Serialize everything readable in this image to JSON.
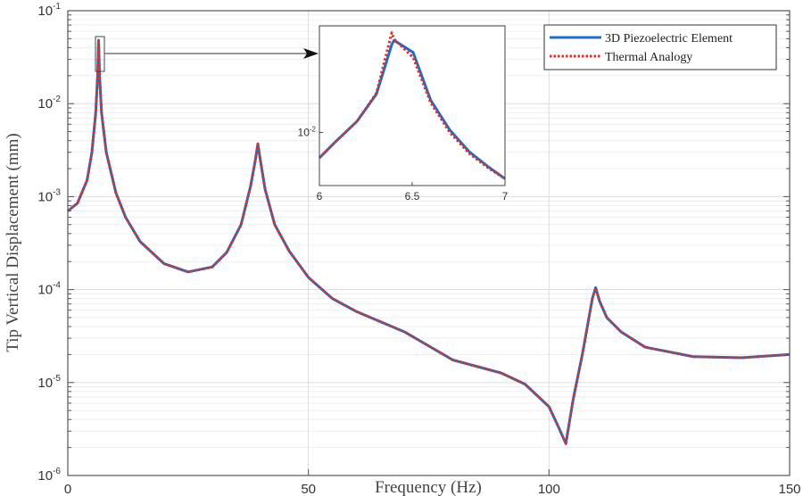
{
  "chart_data": {
    "type": "line",
    "xlabel": "Frequency (Hz)",
    "ylabel": "Tip Vertical Displacement (mm)",
    "xlim": [
      0,
      150
    ],
    "ylim": [
      1e-06,
      0.1
    ],
    "yscale": "log",
    "grid": true,
    "legend_placement": "top-right",
    "x_ticks": [
      "0",
      "50",
      "100",
      "150"
    ],
    "y_ticks": [
      {
        "base": "10",
        "exp": "-1",
        "value": 0.1
      },
      {
        "base": "10",
        "exp": "-2",
        "value": 0.01
      },
      {
        "base": "10",
        "exp": "-3",
        "value": 0.001
      },
      {
        "base": "10",
        "exp": "-4",
        "value": 0.0001
      },
      {
        "base": "10",
        "exp": "-5",
        "value": 1e-05
      },
      {
        "base": "10",
        "exp": "-6",
        "value": 1e-06
      }
    ],
    "x": [
      0,
      2,
      4,
      5,
      5.8,
      6.2,
      6.4,
      6.6,
      7,
      8,
      10,
      12,
      15,
      20,
      25,
      30,
      33,
      36,
      38,
      39,
      39.5,
      40,
      41,
      43,
      46,
      50,
      55,
      60,
      70,
      80,
      90,
      95,
      100,
      102,
      103.5,
      105,
      107,
      109,
      109.7,
      110.5,
      112,
      115,
      120,
      130,
      140,
      150
    ],
    "series": [
      {
        "name": "3D Piezoelectric Element",
        "color": "#1f6fc0",
        "style": "solid",
        "values": [
          0.0007,
          0.00085,
          0.0015,
          0.003,
          0.008,
          0.02,
          0.048,
          0.02,
          0.008,
          0.003,
          0.0011,
          0.0006,
          0.00033,
          0.00019,
          0.000155,
          0.000175,
          0.00025,
          0.0005,
          0.0013,
          0.0025,
          0.0037,
          0.0025,
          0.0012,
          0.0005,
          0.00026,
          0.000135,
          8e-05,
          5.8e-05,
          3.5e-05,
          1.75e-05,
          1.27e-05,
          9.6e-06,
          5.5e-06,
          3.3e-06,
          2.2e-06,
          6.5e-06,
          2.1e-05,
          8e-05,
          0.000105,
          7.5e-05,
          5e-05,
          3.5e-05,
          2.4e-05,
          1.9e-05,
          1.85e-05,
          2e-05
        ]
      },
      {
        "name": "Thermal Analogy",
        "color": "#e0302a",
        "style": "dotted",
        "values": [
          0.0007,
          0.00085,
          0.0015,
          0.003,
          0.008,
          0.02,
          0.048,
          0.02,
          0.008,
          0.003,
          0.0011,
          0.0006,
          0.00033,
          0.00019,
          0.000155,
          0.000175,
          0.00025,
          0.0005,
          0.0013,
          0.0025,
          0.0037,
          0.0025,
          0.0012,
          0.0005,
          0.00026,
          0.000135,
          8e-05,
          5.8e-05,
          3.5e-05,
          1.75e-05,
          1.27e-05,
          9.6e-06,
          5.5e-06,
          3.3e-06,
          2.2e-06,
          6.5e-06,
          2.1e-05,
          8e-05,
          0.000105,
          7.5e-05,
          5e-05,
          3.5e-05,
          2.4e-05,
          1.9e-05,
          1.85e-05,
          2e-05
        ]
      }
    ],
    "inset": {
      "xlim": [
        6,
        7
      ],
      "ylim": [
        0.0042,
        0.057
      ],
      "x_ticks": [
        "6",
        "6.5",
        "7"
      ],
      "y_tick": {
        "base": "10",
        "exp": "-2",
        "value": 0.01
      },
      "x": [
        6,
        6.083,
        6.203,
        6.307,
        6.39,
        6.402,
        6.505,
        6.6,
        6.703,
        6.807,
        6.91,
        7
      ],
      "series": [
        {
          "name": "3D Piezoelectric Element",
          "values": [
            0.0066,
            0.0085,
            0.012,
            0.0187,
            0.042,
            0.045,
            0.037,
            0.0169,
            0.0104,
            0.0073,
            0.0057,
            0.0047
          ]
        },
        {
          "name": "Thermal Analogy",
          "values": [
            0.0066,
            0.0085,
            0.012,
            0.019,
            0.051,
            0.046,
            0.034,
            0.0162,
            0.01,
            0.0071,
            0.0056,
            0.0047
          ]
        }
      ]
    }
  }
}
